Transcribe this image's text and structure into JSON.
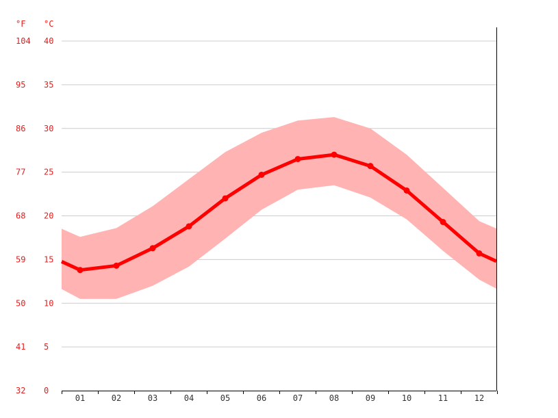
{
  "colors": {
    "line": "#ff0000",
    "band": "#ffb3b3",
    "grid": "#cccccc",
    "label": "#e02020"
  },
  "chart_data": {
    "type": "line",
    "title": "",
    "unit_labels": {
      "fahrenheit": "°F",
      "celsius": "°C"
    },
    "y_left_ticks_f": [
      "104",
      "95",
      "86",
      "77",
      "68",
      "59",
      "50",
      "41",
      "32"
    ],
    "y_right_ticks_c": [
      "40",
      "35",
      "30",
      "25",
      "20",
      "15",
      "10",
      "5",
      "0"
    ],
    "ylim_c": [
      0,
      40
    ],
    "grid": true,
    "categories": [
      "01",
      "02",
      "03",
      "04",
      "05",
      "06",
      "07",
      "08",
      "09",
      "10",
      "11",
      "12"
    ],
    "series": [
      {
        "values": [
          13.8,
          14.3,
          16.3,
          18.8,
          22.0,
          24.7,
          26.5,
          27.0,
          25.7,
          22.9,
          19.3,
          15.7
        ]
      }
    ],
    "band_max": [
      17.6,
      18.6,
      21.1,
      24.2,
      27.3,
      29.5,
      30.9,
      31.3,
      30.0,
      27.0,
      23.2,
      19.4
    ],
    "band_min": [
      10.5,
      10.5,
      12.0,
      14.2,
      17.4,
      20.7,
      23.0,
      23.5,
      22.1,
      19.6,
      16.0,
      12.7
    ]
  }
}
